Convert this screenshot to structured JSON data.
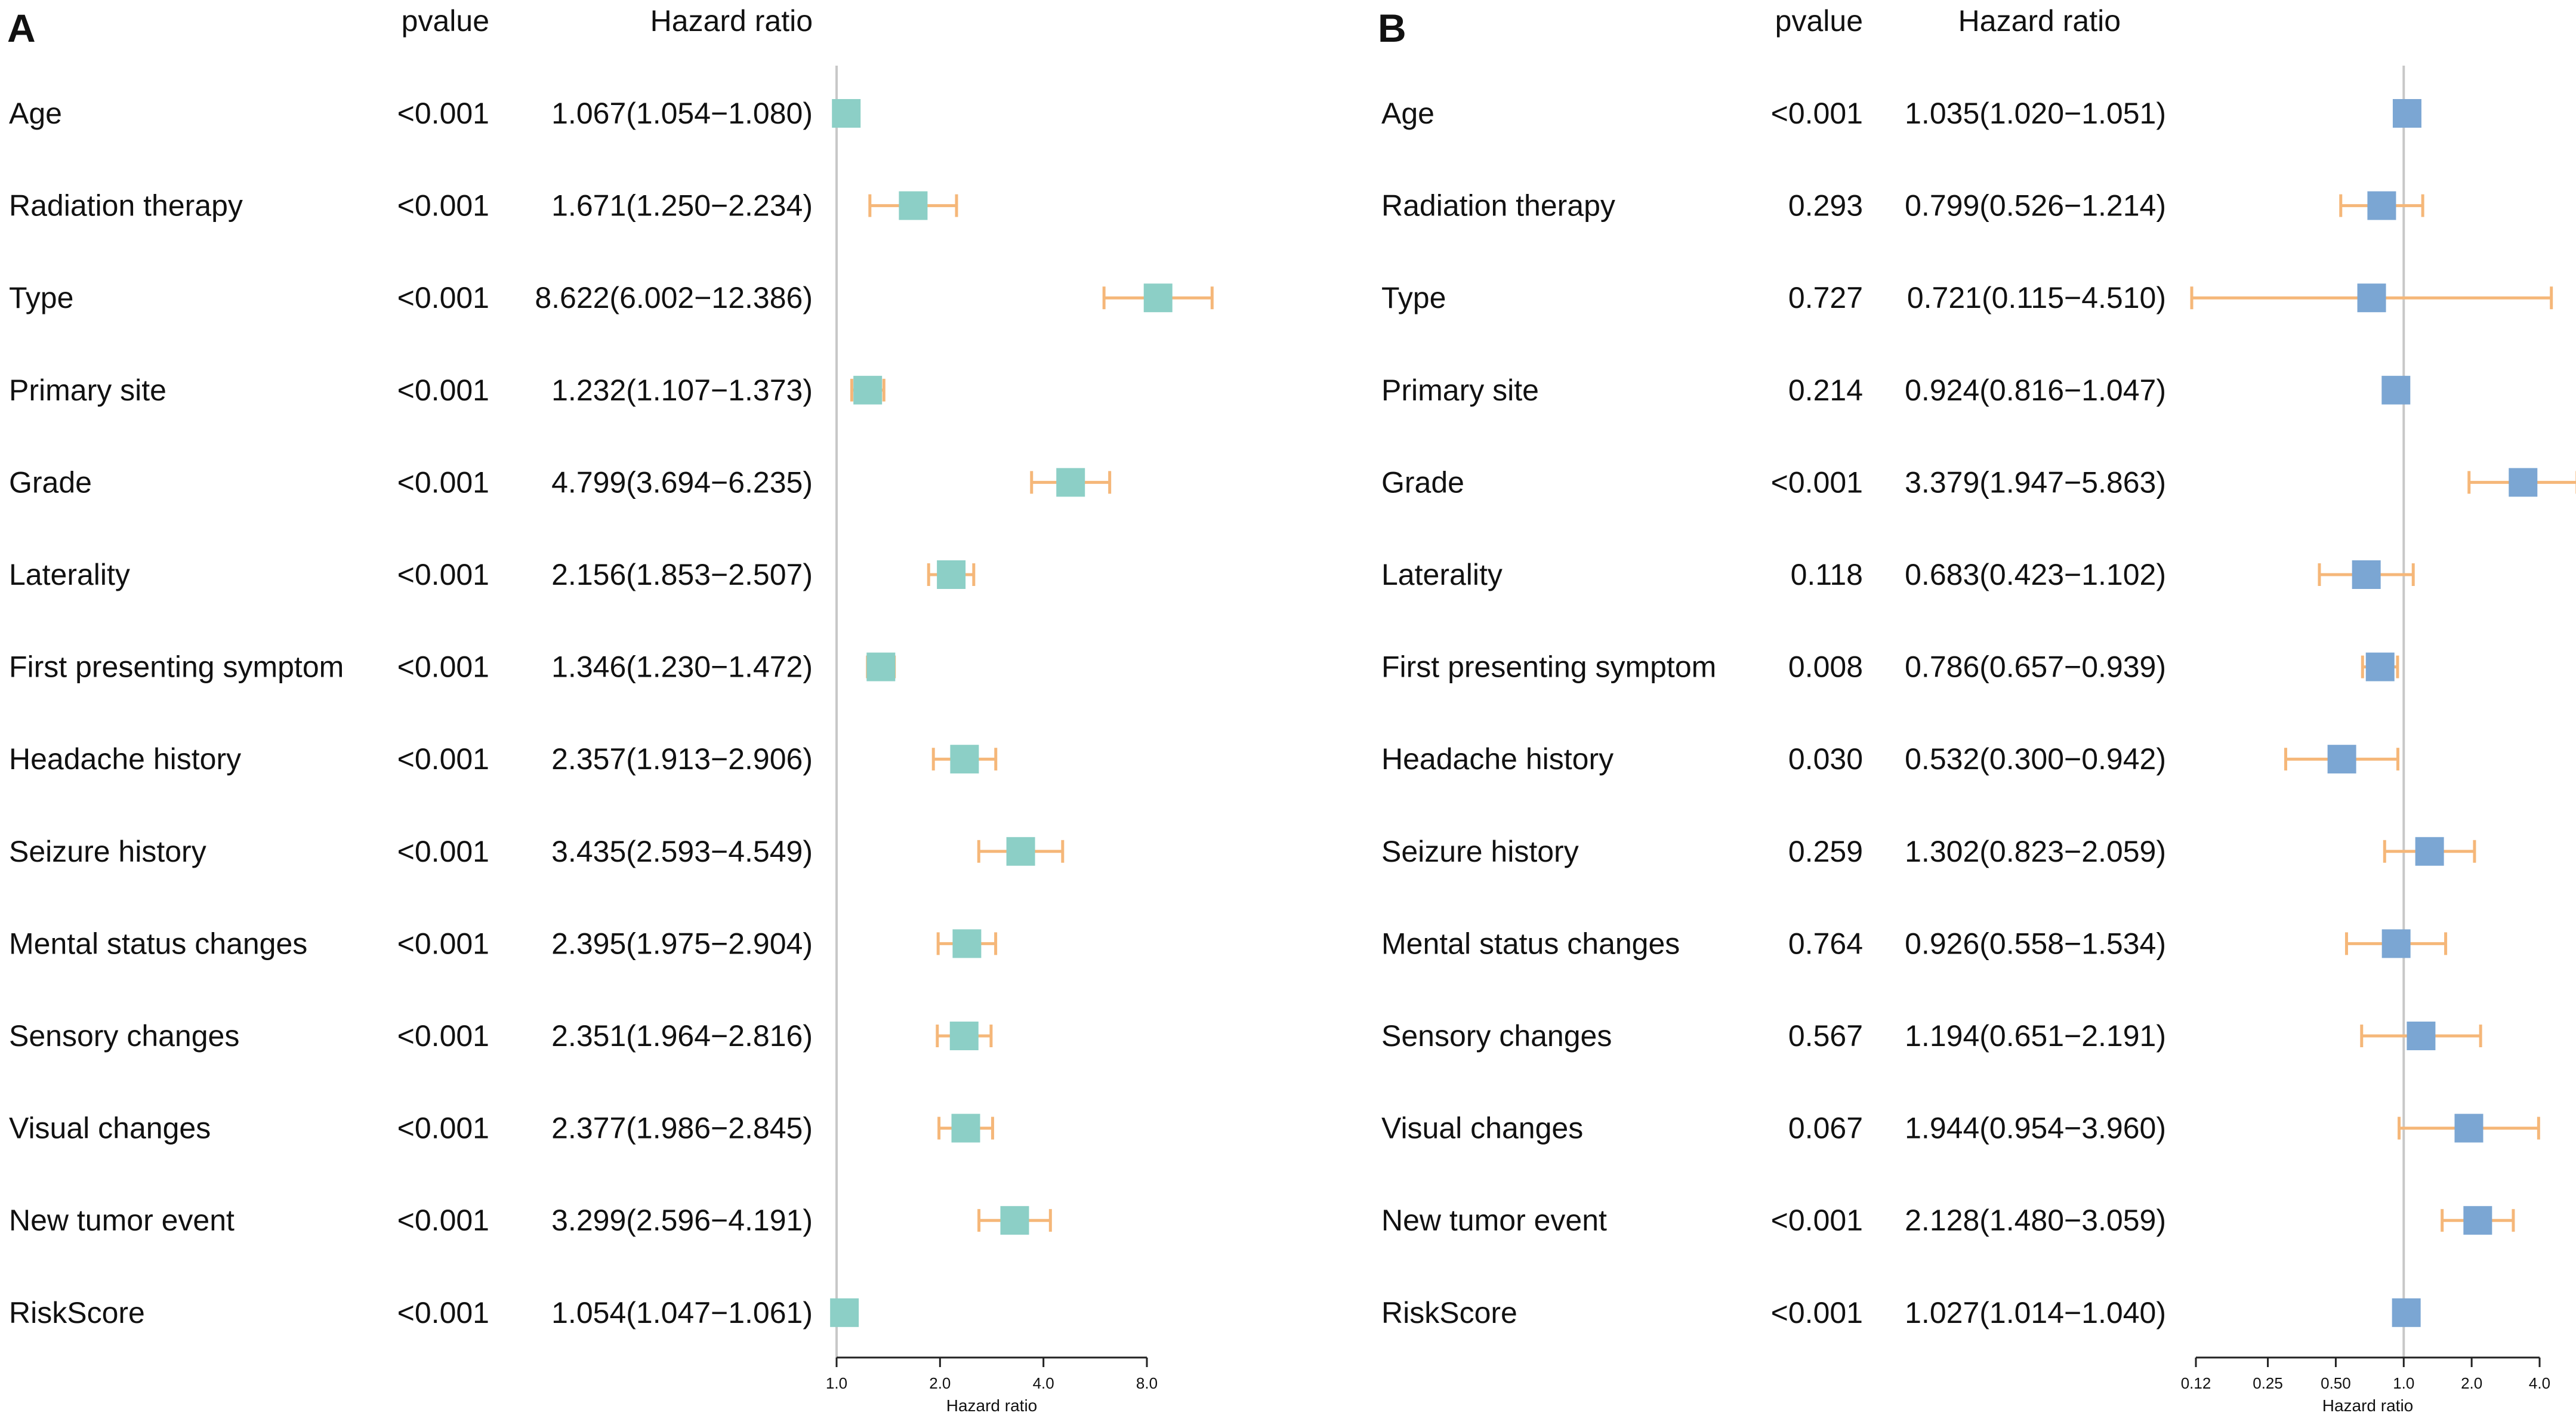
{
  "colors": {
    "box_a": "#8ccfc6",
    "box_b": "#7ba6d3",
    "whisker": "#f5b779",
    "refline": "#c8c8c8",
    "axis": "#222222",
    "text": "#111111"
  },
  "chart_data": [
    {
      "type": "forest",
      "panel_label": "A",
      "headers": {
        "pvalue": "pvalue",
        "hr": "Hazard ratio"
      },
      "xlabel": "Hazard ratio",
      "x_scale": "log2",
      "xlim": [
        1.0,
        8.0
      ],
      "x_ticks": [
        1.0,
        2.0,
        4.0,
        8.0
      ],
      "x_tick_labels": [
        "1.0",
        "2.0",
        "4.0",
        "8.0"
      ],
      "reference_line": 1.0,
      "rows": [
        {
          "variable": "Age",
          "pvalue": "<0.001",
          "hr_text": "1.067(1.054−1.080)",
          "hr": 1.067,
          "lo": 1.054,
          "hi": 1.08
        },
        {
          "variable": "Radiation therapy",
          "pvalue": "<0.001",
          "hr_text": "1.671(1.250−2.234)",
          "hr": 1.671,
          "lo": 1.25,
          "hi": 2.234
        },
        {
          "variable": "Type",
          "pvalue": "<0.001",
          "hr_text": "8.622(6.002−12.386)",
          "hr": 8.622,
          "lo": 6.002,
          "hi": 12.386
        },
        {
          "variable": "Primary site",
          "pvalue": "<0.001",
          "hr_text": "1.232(1.107−1.373)",
          "hr": 1.232,
          "lo": 1.107,
          "hi": 1.373
        },
        {
          "variable": "Grade",
          "pvalue": "<0.001",
          "hr_text": "4.799(3.694−6.235)",
          "hr": 4.799,
          "lo": 3.694,
          "hi": 6.235
        },
        {
          "variable": "Laterality",
          "pvalue": "<0.001",
          "hr_text": "2.156(1.853−2.507)",
          "hr": 2.156,
          "lo": 1.853,
          "hi": 2.507
        },
        {
          "variable": "First presenting symptom",
          "pvalue": "<0.001",
          "hr_text": "1.346(1.230−1.472)",
          "hr": 1.346,
          "lo": 1.23,
          "hi": 1.472
        },
        {
          "variable": "Headache history",
          "pvalue": "<0.001",
          "hr_text": "2.357(1.913−2.906)",
          "hr": 2.357,
          "lo": 1.913,
          "hi": 2.906
        },
        {
          "variable": "Seizure history",
          "pvalue": "<0.001",
          "hr_text": "3.435(2.593−4.549)",
          "hr": 3.435,
          "lo": 2.593,
          "hi": 4.549
        },
        {
          "variable": "Mental status changes",
          "pvalue": "<0.001",
          "hr_text": "2.395(1.975−2.904)",
          "hr": 2.395,
          "lo": 1.975,
          "hi": 2.904
        },
        {
          "variable": "Sensory changes",
          "pvalue": "<0.001",
          "hr_text": "2.351(1.964−2.816)",
          "hr": 2.351,
          "lo": 1.964,
          "hi": 2.816
        },
        {
          "variable": "Visual changes",
          "pvalue": "<0.001",
          "hr_text": "2.377(1.986−2.845)",
          "hr": 2.377,
          "lo": 1.986,
          "hi": 2.845
        },
        {
          "variable": "New tumor event",
          "pvalue": "<0.001",
          "hr_text": "3.299(2.596−4.191)",
          "hr": 3.299,
          "lo": 2.596,
          "hi": 4.191
        },
        {
          "variable": "RiskScore",
          "pvalue": "<0.001",
          "hr_text": "1.054(1.047−1.061)",
          "hr": 1.054,
          "lo": 1.047,
          "hi": 1.061
        }
      ]
    },
    {
      "type": "forest",
      "panel_label": "B",
      "headers": {
        "pvalue": "pvalue",
        "hr": "Hazard ratio"
      },
      "xlabel": "Hazard ratio",
      "x_scale": "log2",
      "xlim": [
        0.12,
        4.0
      ],
      "x_ticks": [
        0.12,
        0.25,
        0.5,
        1.0,
        2.0,
        4.0
      ],
      "x_tick_labels": [
        "0.12",
        "0.25",
        "0.50",
        "1.0",
        "2.0",
        "4.0"
      ],
      "reference_line": 1.0,
      "rows": [
        {
          "variable": "Age",
          "pvalue": "<0.001",
          "hr_text": "1.035(1.020−1.051)",
          "hr": 1.035,
          "lo": 1.02,
          "hi": 1.051
        },
        {
          "variable": "Radiation therapy",
          "pvalue": "0.293",
          "hr_text": "0.799(0.526−1.214)",
          "hr": 0.799,
          "lo": 0.526,
          "hi": 1.214
        },
        {
          "variable": "Type",
          "pvalue": "0.727",
          "hr_text": "0.721(0.115−4.510)",
          "hr": 0.721,
          "lo": 0.115,
          "hi": 4.51
        },
        {
          "variable": "Primary site",
          "pvalue": "0.214",
          "hr_text": "0.924(0.816−1.047)",
          "hr": 0.924,
          "lo": 0.816,
          "hi": 1.047
        },
        {
          "variable": "Grade",
          "pvalue": "<0.001",
          "hr_text": "3.379(1.947−5.863)",
          "hr": 3.379,
          "lo": 1.947,
          "hi": 5.863
        },
        {
          "variable": "Laterality",
          "pvalue": "0.118",
          "hr_text": "0.683(0.423−1.102)",
          "hr": 0.683,
          "lo": 0.423,
          "hi": 1.102
        },
        {
          "variable": "First presenting symptom",
          "pvalue": "0.008",
          "hr_text": "0.786(0.657−0.939)",
          "hr": 0.786,
          "lo": 0.657,
          "hi": 0.939
        },
        {
          "variable": "Headache history",
          "pvalue": "0.030",
          "hr_text": "0.532(0.300−0.942)",
          "hr": 0.532,
          "lo": 0.3,
          "hi": 0.942
        },
        {
          "variable": "Seizure history",
          "pvalue": "0.259",
          "hr_text": "1.302(0.823−2.059)",
          "hr": 1.302,
          "lo": 0.823,
          "hi": 2.059
        },
        {
          "variable": "Mental status changes",
          "pvalue": "0.764",
          "hr_text": "0.926(0.558−1.534)",
          "hr": 0.926,
          "lo": 0.558,
          "hi": 1.534
        },
        {
          "variable": "Sensory changes",
          "pvalue": "0.567",
          "hr_text": "1.194(0.651−2.191)",
          "hr": 1.194,
          "lo": 0.651,
          "hi": 2.191
        },
        {
          "variable": "Visual changes",
          "pvalue": "0.067",
          "hr_text": "1.944(0.954−3.960)",
          "hr": 1.944,
          "lo": 0.954,
          "hi": 3.96
        },
        {
          "variable": "New tumor event",
          "pvalue": "<0.001",
          "hr_text": "2.128(1.480−3.059)",
          "hr": 2.128,
          "lo": 1.48,
          "hi": 3.059
        },
        {
          "variable": "RiskScore",
          "pvalue": "<0.001",
          "hr_text": "1.027(1.014−1.040)",
          "hr": 1.027,
          "lo": 1.014,
          "hi": 1.04
        }
      ]
    }
  ]
}
